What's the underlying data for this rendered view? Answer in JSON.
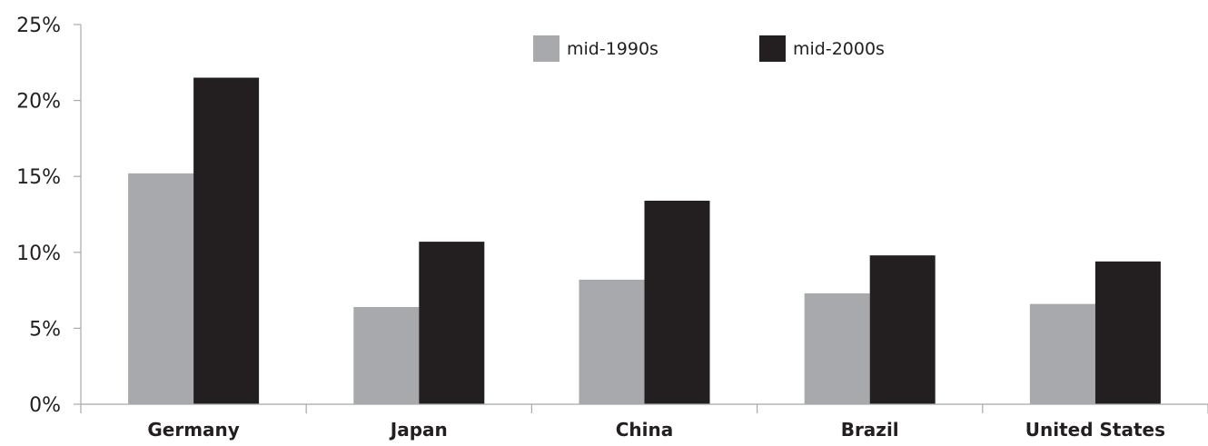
{
  "chart_data": {
    "type": "bar",
    "title": "",
    "xlabel": "",
    "ylabel": "",
    "categories": [
      "Germany",
      "Japan",
      "China",
      "Brazil",
      "United States"
    ],
    "series": [
      {
        "name": "mid-1990s",
        "color": "#a7a9ac",
        "values": [
          15.2,
          6.4,
          8.2,
          7.3,
          6.6
        ]
      },
      {
        "name": "mid-2000s",
        "color": "#231f20",
        "values": [
          21.5,
          10.7,
          13.4,
          9.8,
          9.4
        ]
      }
    ],
    "ylim": [
      0,
      25
    ],
    "yticks": [
      {
        "value": 0,
        "label": "0%"
      },
      {
        "value": 5,
        "label": "5%"
      },
      {
        "value": 10,
        "label": "10%"
      },
      {
        "value": 15,
        "label": "15%"
      },
      {
        "value": 20,
        "label": "20%"
      },
      {
        "value": 25,
        "label": "25%"
      }
    ],
    "grid": false,
    "legend_position": "top-center",
    "axis_color": "#a7a9ac",
    "text_color": "#231f20"
  }
}
